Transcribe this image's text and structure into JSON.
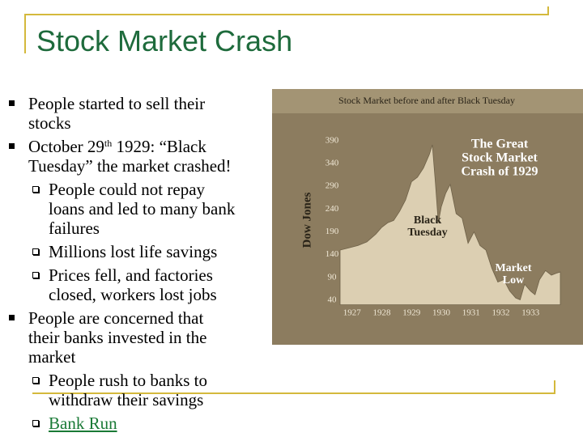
{
  "slide": {
    "title": "Stock Market Crash",
    "items": [
      {
        "level": 1,
        "lines": [
          "People started to sell their",
          "stocks"
        ]
      },
      {
        "level": 1,
        "lines": [
          [
            "October 29",
            "th",
            " 1929: “Black"
          ],
          "Tuesday” the market crashed!"
        ]
      },
      {
        "level": 2,
        "lines": [
          "People could not repay",
          "loans and led to many bank",
          "failures"
        ]
      },
      {
        "level": 2,
        "lines": [
          "Millions lost life savings"
        ]
      },
      {
        "level": 2,
        "lines": [
          "Prices fell, and factories",
          "closed, workers lost jobs"
        ]
      },
      {
        "level": 1,
        "lines": [
          "People are concerned that",
          "their banks invested in the",
          "market"
        ]
      },
      {
        "level": 2,
        "lines": [
          "People rush to banks to",
          "withdraw their savings"
        ]
      },
      {
        "level": 2,
        "lines": [
          "Bank Run"
        ],
        "link": true
      }
    ]
  },
  "figure": {
    "type": "area",
    "title": "Stock Market before and after Black Tuesday",
    "ylabel": "Dow Jones",
    "annotations": [
      {
        "lines": [
          "The Great",
          "Stock Market",
          "Crash of 1929"
        ]
      },
      {
        "lines": [
          "Black",
          "Tuesday"
        ]
      },
      {
        "lines": [
          "Market",
          "Low"
        ]
      }
    ],
    "x": [
      1926.6,
      1926.9,
      1927.2,
      1927.5,
      1927.8,
      1928.0,
      1928.2,
      1928.4,
      1928.6,
      1928.8,
      1929.0,
      1929.2,
      1929.4,
      1929.6,
      1929.7,
      1929.8,
      1929.9,
      1930.0,
      1930.15,
      1930.3,
      1930.5,
      1930.7,
      1930.9,
      1931.1,
      1931.3,
      1931.5,
      1931.7,
      1931.9,
      1932.1,
      1932.3,
      1932.5,
      1932.65,
      1932.8,
      1933.0,
      1933.15,
      1933.3,
      1933.5,
      1933.7,
      1933.9,
      1934.0
    ],
    "values": [
      150,
      155,
      160,
      168,
      185,
      200,
      210,
      215,
      235,
      260,
      300,
      310,
      330,
      360,
      381,
      300,
      210,
      245,
      275,
      294,
      230,
      220,
      165,
      190,
      160,
      150,
      110,
      80,
      85,
      60,
      45,
      41,
      75,
      60,
      52,
      85,
      105,
      95,
      100,
      102
    ],
    "xlim": [
      1926.6,
      1934.0
    ],
    "ylim": [
      30,
      420
    ],
    "xticks": [
      1927,
      1928,
      1929,
      1930,
      1931,
      1932,
      1933
    ],
    "yticks": [
      390,
      340,
      290,
      240,
      190,
      140,
      90,
      40
    ]
  }
}
